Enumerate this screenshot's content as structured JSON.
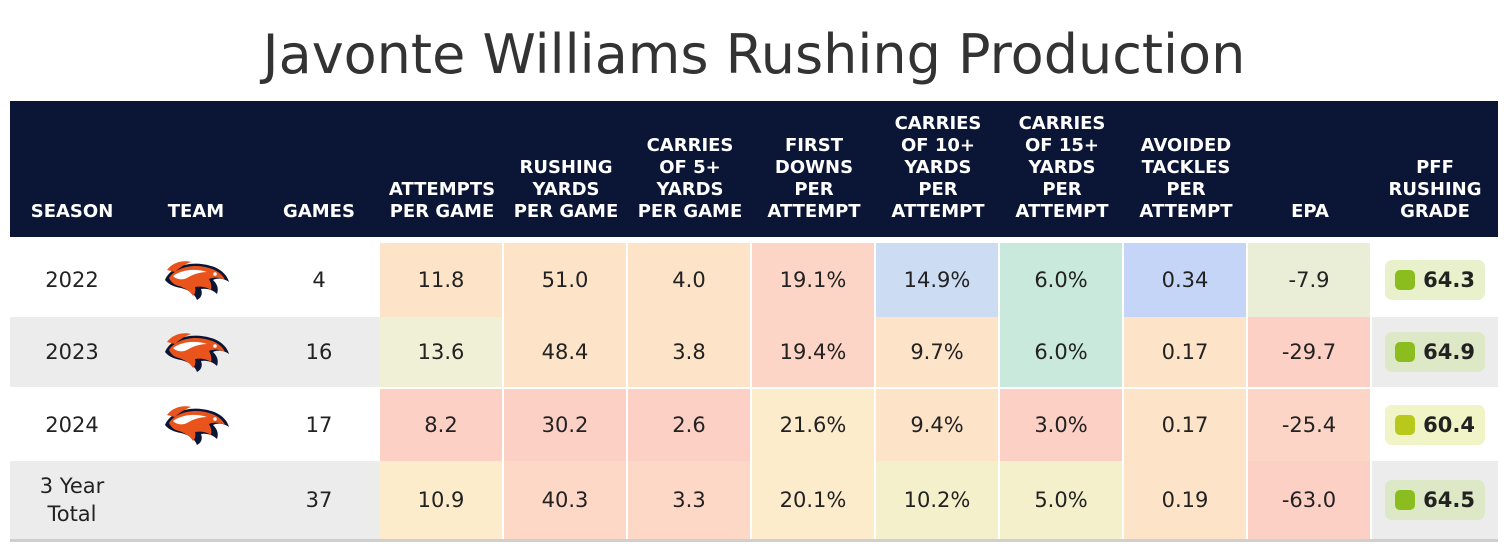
{
  "title": "Javonte Williams Rushing Production",
  "columns": [
    {
      "key": "season",
      "label": "SEASON"
    },
    {
      "key": "team",
      "label": "TEAM"
    },
    {
      "key": "games",
      "label": "GAMES"
    },
    {
      "key": "att_pg",
      "label": "ATTEMPTS\nPER GAME"
    },
    {
      "key": "yds_pg",
      "label": "RUSHING\nYARDS\nPER GAME"
    },
    {
      "key": "c5_pg",
      "label": "CARRIES\nOF 5+\nYARDS\nPER GAME"
    },
    {
      "key": "fd_pa",
      "label": "FIRST\nDOWNS\nPER\nATTEMPT"
    },
    {
      "key": "c10_pa",
      "label": "CARRIES\nOF 10+\nYARDS\nPER\nATTEMPT"
    },
    {
      "key": "c15_pa",
      "label": "CARRIES\nOF 15+\nYARDS\nPER\nATTEMPT"
    },
    {
      "key": "at_pa",
      "label": "AVOIDED\nTACKLES\nPER\nATTEMPT"
    },
    {
      "key": "epa",
      "label": "EPA"
    },
    {
      "key": "grade",
      "label": "PFF\nRUSHING\nGRADE"
    }
  ],
  "team_logo_icon": "broncos-logo-icon",
  "rows": [
    {
      "season": "2022",
      "team_logo": true,
      "games": "4",
      "att_pg": "11.8",
      "yds_pg": "51.0",
      "c5_pg": "4.0",
      "fd_pa": "19.1%",
      "c10_pa": "14.9%",
      "c15_pa": "6.0%",
      "at_pa": "0.34",
      "epa": "-7.9",
      "grade": "64.3",
      "colors": {
        "att_pg": "#fde3c8",
        "yds_pg": "#fde3c8",
        "c5_pg": "#fde3c8",
        "fd_pa": "#fdd5c6",
        "c10_pa": "#ccdcf3",
        "c15_pa": "#c8e9dc",
        "at_pa": "#c4d5f8",
        "epa": "#eaeed6",
        "grade_bg": "#e9f1cc",
        "grade_dot": "#8cbd1f"
      }
    },
    {
      "season": "2023",
      "team_logo": true,
      "games": "16",
      "att_pg": "13.6",
      "yds_pg": "48.4",
      "c5_pg": "3.8",
      "fd_pa": "19.4%",
      "c10_pa": "9.7%",
      "c15_pa": "6.0%",
      "at_pa": "0.17",
      "epa": "-29.7",
      "grade": "64.9",
      "colors": {
        "att_pg": "#eff0d6",
        "yds_pg": "#fde3c8",
        "c5_pg": "#fde3c8",
        "fd_pa": "#fdd5c6",
        "c10_pa": "#fde3c8",
        "c15_pa": "#c8e9dc",
        "at_pa": "#fde3c8",
        "epa": "#fdd0c6",
        "grade_bg": "#dde9c6",
        "grade_dot": "#8cbd1f"
      }
    },
    {
      "season": "2024",
      "team_logo": true,
      "games": "17",
      "att_pg": "8.2",
      "yds_pg": "30.2",
      "c5_pg": "2.6",
      "fd_pa": "21.6%",
      "c10_pa": "9.4%",
      "c15_pa": "3.0%",
      "at_pa": "0.17",
      "epa": "-25.4",
      "grade": "60.4",
      "colors": {
        "att_pg": "#fdd0c6",
        "yds_pg": "#fdd0c6",
        "c5_pg": "#fdd0c6",
        "fd_pa": "#fdeccc",
        "c10_pa": "#fde3c8",
        "c15_pa": "#fdd0c6",
        "at_pa": "#fde3c8",
        "epa": "#fdd5c6",
        "grade_bg": "#f1f4c6",
        "grade_dot": "#b8c91c"
      }
    },
    {
      "season": "3 Year\nTotal",
      "team_logo": false,
      "games": "37",
      "att_pg": "10.9",
      "yds_pg": "40.3",
      "c5_pg": "3.3",
      "fd_pa": "20.1%",
      "c10_pa": "10.2%",
      "c15_pa": "5.0%",
      "at_pa": "0.19",
      "epa": "-63.0",
      "grade": "64.5",
      "colors": {
        "att_pg": "#fdeccc",
        "yds_pg": "#fdd8c6",
        "c5_pg": "#fdd8c6",
        "fd_pa": "#fdeccc",
        "c10_pa": "#f5f0cc",
        "c15_pa": "#f5f0cc",
        "at_pa": "#fde3c8",
        "epa": "#fdd0c6",
        "grade_bg": "#dde9c6",
        "grade_dot": "#8cbd1f"
      }
    }
  ],
  "colors": {
    "header_bg": "#0b1535",
    "row_white": "#ffffff",
    "row_gray": "#ececec",
    "logo_orange": "#e8541b",
    "logo_navy": "#0b1535"
  }
}
